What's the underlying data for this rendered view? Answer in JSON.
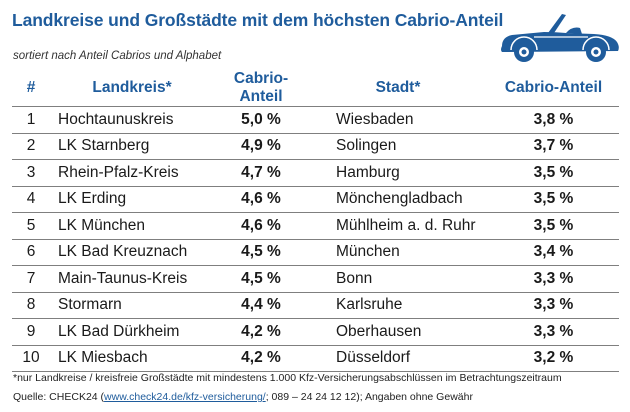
{
  "title": "Landkreise und Großstädte mit dem höchsten Cabrio-Anteil",
  "subtitle": "sortiert nach Anteil Cabrios und Alphabet",
  "icon": "convertible-car-icon",
  "colors": {
    "accent": "#1f5c9c",
    "car": "#1f5c9c",
    "rule": "#7f7f7f"
  },
  "headers": {
    "rank": "#",
    "district": "Landkreis*",
    "share_district": "Cabrio-Anteil",
    "city": "Stadt*",
    "share_city": "Cabrio-Anteil"
  },
  "chart_data": {
    "type": "table",
    "columns": [
      "#",
      "Landkreis*",
      "Cabrio-Anteil",
      "Stadt*",
      "Cabrio-Anteil"
    ],
    "rows": [
      [
        "1",
        "Hochtaunuskreis",
        "5,0 %",
        "Wiesbaden",
        "3,8 %"
      ],
      [
        "2",
        "LK Starnberg",
        "4,9 %",
        "Solingen",
        "3,7 %"
      ],
      [
        "3",
        "Rhein-Pfalz-Kreis",
        "4,7 %",
        "Hamburg",
        "3,5 %"
      ],
      [
        "4",
        "LK Erding",
        "4,6 %",
        "Mönchengladbach",
        "3,5 %"
      ],
      [
        "5",
        "LK München",
        "4,6 %",
        "Mühlheim a. d. Ruhr",
        "3,5 %"
      ],
      [
        "6",
        "LK Bad Kreuznach",
        "4,5 %",
        "München",
        "3,4 %"
      ],
      [
        "7",
        "Main-Taunus-Kreis",
        "4,5 %",
        "Bonn",
        "3,3 %"
      ],
      [
        "8",
        "Stormarn",
        "4,4 %",
        "Karlsruhe",
        "3,3 %"
      ],
      [
        "9",
        "LK Bad Dürkheim",
        "4,2 %",
        "Oberhausen",
        "3,3 %"
      ],
      [
        "10",
        "LK Miesbach",
        "4,2 %",
        "Düsseldorf",
        "3,2 %"
      ]
    ]
  },
  "footnote": "*nur Landkreise / kreisfreie Großstädte mit mindestens 1.000 Kfz-Versicherungsabschlüssen im Betrachtungszeitraum",
  "source": {
    "prefix": "Quelle: CHECK24 (",
    "link": "www.check24.de/kfz-versicherung/",
    "suffix": "; 089 – 24 24 12 12); Angaben ohne Gewähr"
  }
}
